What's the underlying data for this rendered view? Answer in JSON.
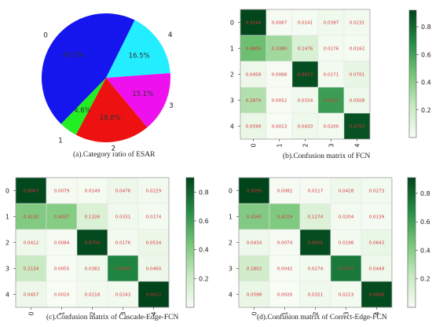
{
  "chart_data": [
    {
      "type": "pie",
      "caption": "(a).Category ratio of ESAR",
      "slices": [
        {
          "label": "0",
          "percent_label": "45.0%",
          "value": 45.0,
          "color": "#1515ee"
        },
        {
          "label": "1",
          "percent_label": "4.6%",
          "value": 4.6,
          "color": "#22ee22"
        },
        {
          "label": "2",
          "percent_label": "18.8%",
          "value": 18.8,
          "color": "#ee1111"
        },
        {
          "label": "3",
          "percent_label": "15.1%",
          "value": 15.1,
          "color": "#ee11ee"
        },
        {
          "label": "4",
          "percent_label": "16.5%",
          "value": 16.5,
          "color": "#22eeff"
        }
      ]
    },
    {
      "type": "heatmap",
      "caption": "(b).Confusion matrix of FCN",
      "row_labels": [
        "0",
        "1",
        "2",
        "3",
        "4"
      ],
      "col_labels": [
        "0",
        "1",
        "2",
        "3",
        "4"
      ],
      "colorbar_ticks": [
        "0.2",
        "0.4",
        "0.6",
        "0.8"
      ],
      "vmin": 0.0,
      "vmax": 0.92,
      "matrix": [
        [
          "0.9144",
          "0.0087",
          "0.0141",
          "0.0397",
          "0.0231"
        ],
        [
          "0.4806",
          "0.3380",
          "0.1476",
          "0.0176",
          "0.0162"
        ],
        [
          "0.0458",
          "0.0068",
          "0.8873",
          "0.0171",
          "0.0701"
        ],
        [
          "0.2879",
          "0.0052",
          "0.0334",
          "0.6227",
          "0.0508"
        ],
        [
          "0.0599",
          "0.0013",
          "0.0433",
          "0.0200",
          "0.8755"
        ]
      ]
    },
    {
      "type": "heatmap",
      "caption": "(c).Confusion matrix of Cascade-Edge-FCN",
      "row_labels": [
        "0",
        "1",
        "2",
        "3",
        "4"
      ],
      "col_labels": [
        "0",
        "1",
        "2",
        "3",
        "4"
      ],
      "colorbar_ticks": [
        "0.2",
        "0.4",
        "0.6",
        "0.8"
      ],
      "vmin": 0.0,
      "vmax": 0.9,
      "matrix": [
        [
          "0.8867",
          "0.0079",
          "0.0149",
          "0.0476",
          "0.0229"
        ],
        [
          "0.4130",
          "0.4037",
          "0.1326",
          "0.0331",
          "0.0174"
        ],
        [
          "0.0412",
          "0.0084",
          "0.8794",
          "0.0176",
          "0.0534"
        ],
        [
          "0.2134",
          "0.0055",
          "0.0382",
          "0.6969",
          "0.0460"
        ],
        [
          "0.0457",
          "0.0010",
          "0.0218",
          "0.0243",
          "0.9072"
        ]
      ]
    },
    {
      "type": "heatmap",
      "caption": "(d).Confusion matrix of Correct-Edge-FCN",
      "row_labels": [
        "0",
        "1",
        "2",
        "3",
        "4"
      ],
      "col_labels": [
        "0",
        "1",
        "2",
        "3",
        "4"
      ],
      "colorbar_ticks": [
        "0.2",
        "0.4",
        "0.6",
        "0.8"
      ],
      "vmin": 0.0,
      "vmax": 0.91,
      "matrix": [
        [
          "0.9099",
          "0.0082",
          "0.0117",
          "0.0428",
          "0.0273"
        ],
        [
          "0.4165",
          "0.4219",
          "0.1274",
          "0.0204",
          "0.0139"
        ],
        [
          "0.0434",
          "0.0074",
          "0.8856",
          "0.0198",
          "0.0643"
        ],
        [
          "0.1802",
          "0.0042",
          "0.0274",
          "0.7401",
          "0.0449"
        ],
        [
          "0.0598",
          "0.0020",
          "0.0321",
          "0.0213",
          "0.8848"
        ]
      ]
    }
  ]
}
